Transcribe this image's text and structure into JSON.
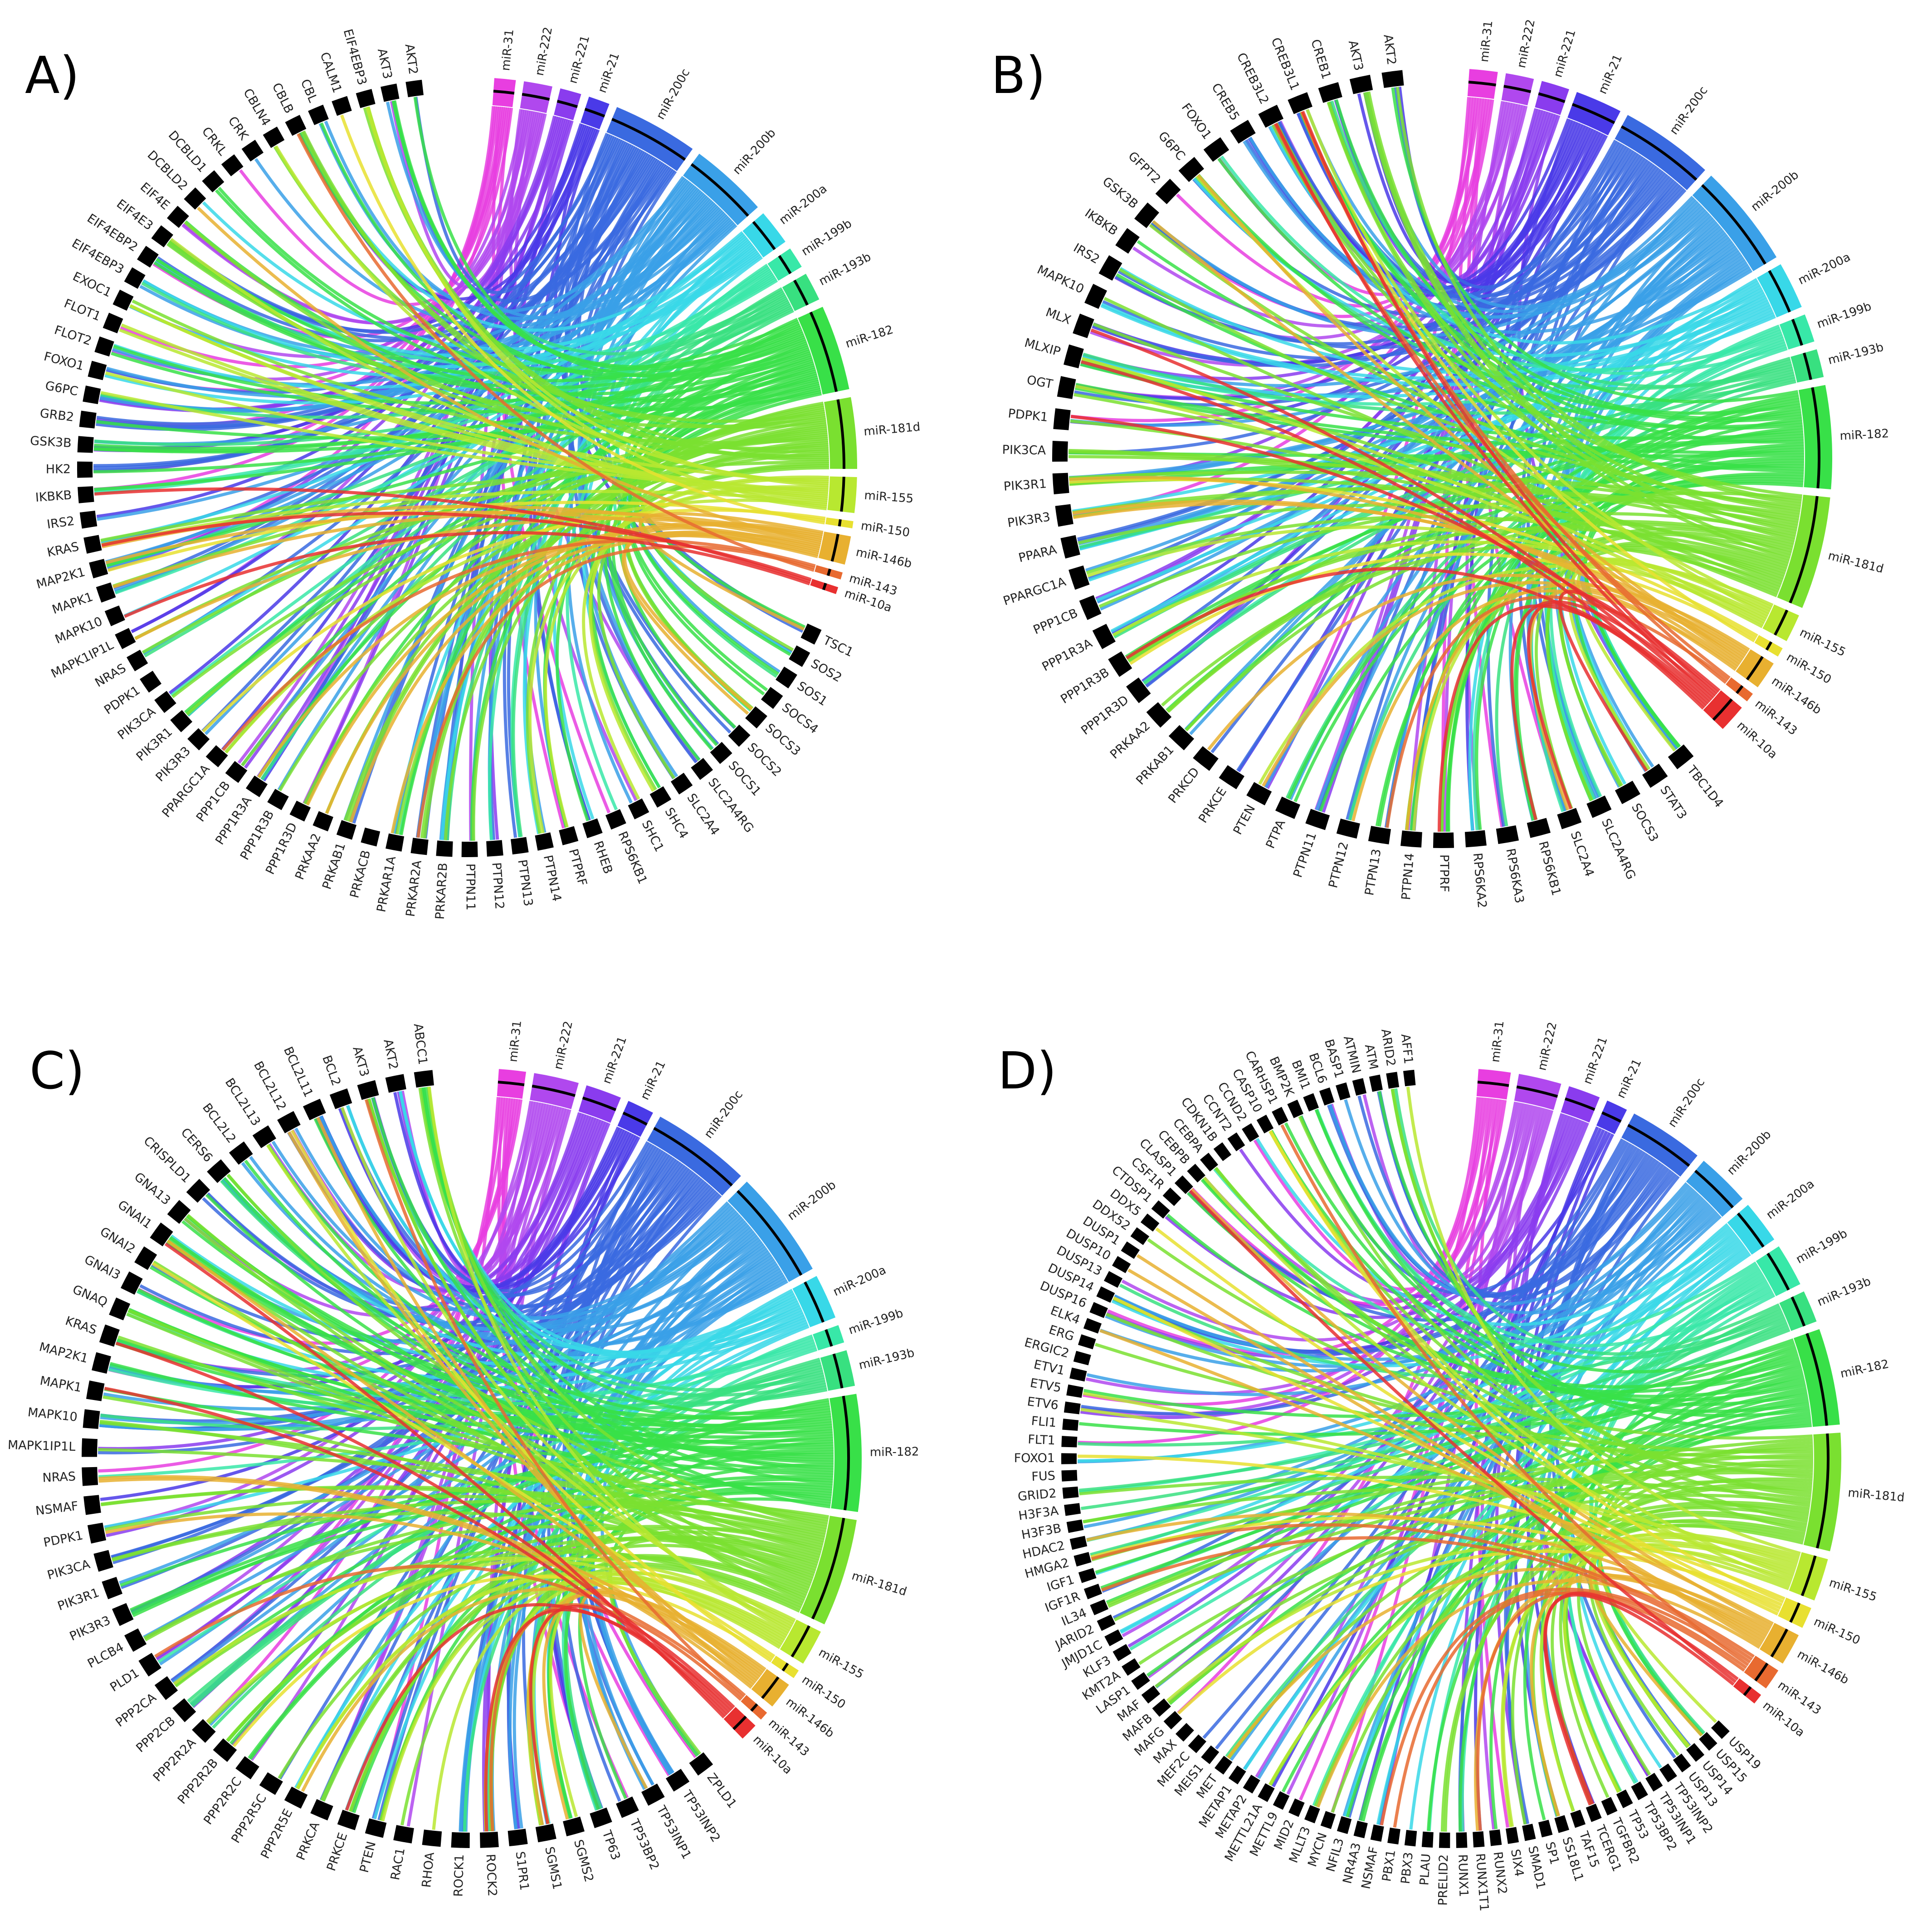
{
  "panels": [
    {
      "letter": "A)",
      "mirnas": [
        "miR-31",
        "miR-222",
        "miR-221",
        "miR-21",
        "miR-200c",
        "miR-200b",
        "miR-200a",
        "miR-199b",
        "miR-193b",
        "miR-182",
        "miR-181d",
        "miR-155",
        "miR-150",
        "miR-146b",
        "miR-143",
        "miR-10a"
      ],
      "mirna_weights": [
        3,
        4,
        3,
        3,
        12,
        11,
        5,
        3,
        4,
        12,
        10,
        5,
        1,
        4,
        1,
        1
      ],
      "genes": [
        "TSC1",
        "SOS2",
        "SOS1",
        "SOCS4",
        "SOCS3",
        "SOCS2",
        "SOCS1",
        "SLC2A4RG",
        "SLC2A4",
        "SHC4",
        "SHC1",
        "RPS6KB1",
        "RHEB",
        "PTPRF",
        "PTPN14",
        "PTPN13",
        "PTPN12",
        "PTPN11",
        "PRKAR2B",
        "PRKAR2A",
        "PRKAR1A",
        "PRKACB",
        "PRKAB1",
        "PRKAA2",
        "PPP1R3D",
        "PPP1R3B",
        "PPP1R3A",
        "PPP1CB",
        "PPARGC1A",
        "PIK3R3",
        "PIK3R1",
        "PIK3CA",
        "PDPK1",
        "NRAS",
        "MAPK1IP1L",
        "MAPK10",
        "MAPK1",
        "MAP2K1",
        "KRAS",
        "IRS2",
        "IKBKB",
        "HK2",
        "GSK3B",
        "GRB2",
        "G6PC",
        "FOXO1",
        "FLOT2",
        "FLOT1",
        "EXOC1",
        "EIF4EBP3",
        "EIF4EBP2",
        "EIF4E3",
        "EIF4E",
        "DCBLD2",
        "DCBLD1",
        "CRKL",
        "CRK",
        "CBLN4",
        "CBLB",
        "CBL",
        "CALM1",
        "EIF4EBP3",
        "AKT3",
        "AKT2"
      ]
    },
    {
      "letter": "B)",
      "mirnas": [
        "miR-31",
        "miR-222",
        "miR-221",
        "miR-21",
        "miR-200c",
        "miR-200b",
        "miR-200a",
        "miR-199b",
        "miR-193b",
        "miR-182",
        "miR-181d",
        "miR-155",
        "miR-150",
        "miR-146b",
        "miR-143",
        "miR-10a"
      ],
      "mirna_weights": [
        3,
        3,
        3,
        5,
        10,
        11,
        5,
        3,
        3,
        11,
        12,
        3,
        1,
        3,
        1,
        3
      ],
      "genes": [
        "TBC1D4",
        "STAT3",
        "SOCS3",
        "SLC2A4RG",
        "SLC2A4",
        "RPS6KB1",
        "RPS6KA3",
        "RPS6KA2",
        "PTPRF",
        "PTPN14",
        "PTPN13",
        "PTPN12",
        "PTPN11",
        "PTPA",
        "PTEN",
        "PRKCE",
        "PRKCD",
        "PRKAB1",
        "PRKAA2",
        "PPP1R3D",
        "PPP1R3B",
        "PPP1R3A",
        "PPP1CB",
        "PPARGC1A",
        "PPARA",
        "PIK3R3",
        "PIK3R1",
        "PIK3CA",
        "PDPK1",
        "OGT",
        "MLXIP",
        "MLX",
        "MAPK10",
        "IRS2",
        "IKBKB",
        "GSK3B",
        "GFPT2",
        "G6PC",
        "FOXO1",
        "CREB5",
        "CREB3L2",
        "CREB3L1",
        "CREB1",
        "AKT3",
        "AKT2"
      ]
    },
    {
      "letter": "C)",
      "mirnas": [
        "miR-31",
        "miR-222",
        "miR-221",
        "miR-21",
        "miR-200c",
        "miR-200b",
        "miR-200a",
        "miR-199b",
        "miR-193b",
        "miR-182",
        "miR-181d",
        "miR-155",
        "miR-150",
        "miR-146b",
        "miR-143",
        "miR-10a"
      ],
      "mirna_weights": [
        3,
        5,
        4,
        3,
        11,
        12,
        5,
        2,
        4,
        13,
        12,
        4,
        1,
        3,
        1,
        2
      ],
      "genes": [
        "ZPLD1",
        "TP53INP2",
        "TP53INP1",
        "TP53BP2",
        "TP63",
        "SGMS2",
        "SGMS1",
        "S1PR1",
        "ROCK2",
        "ROCK1",
        "RHOA",
        "RAC1",
        "PTEN",
        "PRKCE",
        "PRKCA",
        "PPP2R5E",
        "PPP2R5C",
        "PPP2R2C",
        "PPP2R2B",
        "PPP2R2A",
        "PPP2CB",
        "PPP2CA",
        "PLD1",
        "PLCB4",
        "PIK3R3",
        "PIK3R1",
        "PIK3CA",
        "PDPK1",
        "NSMAF",
        "NRAS",
        "MAPK1IP1L",
        "MAPK10",
        "MAPK1",
        "MAP2K1",
        "KRAS",
        "GNAQ",
        "GNAI3",
        "GNAI2",
        "GNAI1",
        "GNA13",
        "CRISPLD1",
        "CERS6",
        "BCL2L2",
        "BCL2L13",
        "BCL2L12",
        "BCL2L11",
        "BCL2",
        "AKT3",
        "AKT2",
        "ABCC1"
      ]
    },
    {
      "letter": "D)",
      "mirnas": [
        "miR-31",
        "miR-222",
        "miR-221",
        "miR-21",
        "miR-200c",
        "miR-200b",
        "miR-200a",
        "miR-199b",
        "miR-193b",
        "miR-182",
        "miR-181d",
        "miR-155",
        "miR-150",
        "miR-146b",
        "miR-143",
        "miR-10a"
      ],
      "mirna_weights": [
        3,
        4,
        3,
        2,
        7,
        5,
        4,
        4,
        3,
        9,
        11,
        4,
        2,
        3,
        2,
        1
      ],
      "genes": [
        "USP19",
        "USP15",
        "USP14",
        "USP13",
        "TP53INP2",
        "TP53INP1",
        "TP53BP2",
        "TP53",
        "TGFBR2",
        "TCERG1",
        "TAF15",
        "SS18L1",
        "SP1",
        "SMAD1",
        "SIX4",
        "RUNX2",
        "RUNX1T1",
        "RUNX1",
        "PRELID2",
        "PLAU",
        "PBX3",
        "PBX1",
        "NSMAF",
        "NR4A3",
        "NFIL3",
        "MYCN",
        "MLLT3",
        "MID2",
        "METTL9",
        "METTL21A",
        "METAP2",
        "METAP1",
        "MET",
        "MEIS1",
        "MEF2C",
        "MAX",
        "MAFG",
        "MAFB",
        "MAF",
        "LASP1",
        "KMT2A",
        "KLF3",
        "JMJD1C",
        "JARID2",
        "IL34",
        "IGF1R",
        "IGF1",
        "HMGA2",
        "HDAC2",
        "H3F3B",
        "H3F3A",
        "GRID2",
        "FUS",
        "FOXO1",
        "FLT1",
        "FLI1",
        "ETV6",
        "ETV5",
        "ETV1",
        "ERGIC2",
        "ERG",
        "ELK4",
        "DUSP16",
        "DUSP14",
        "DUSP13",
        "DUSP10",
        "DUSP1",
        "DDX52",
        "DDX5",
        "CTDSP1",
        "CSF1R",
        "CLASP1",
        "CEBPB",
        "CEBPA",
        "CDKN1B",
        "CCNT2",
        "CCND2",
        "CASP10",
        "CARHSP1",
        "BMP2K",
        "BMI1",
        "BCL6",
        "BASP1",
        "ATMIN",
        "ATM",
        "ARID2",
        "AFF1"
      ]
    }
  ]
}
